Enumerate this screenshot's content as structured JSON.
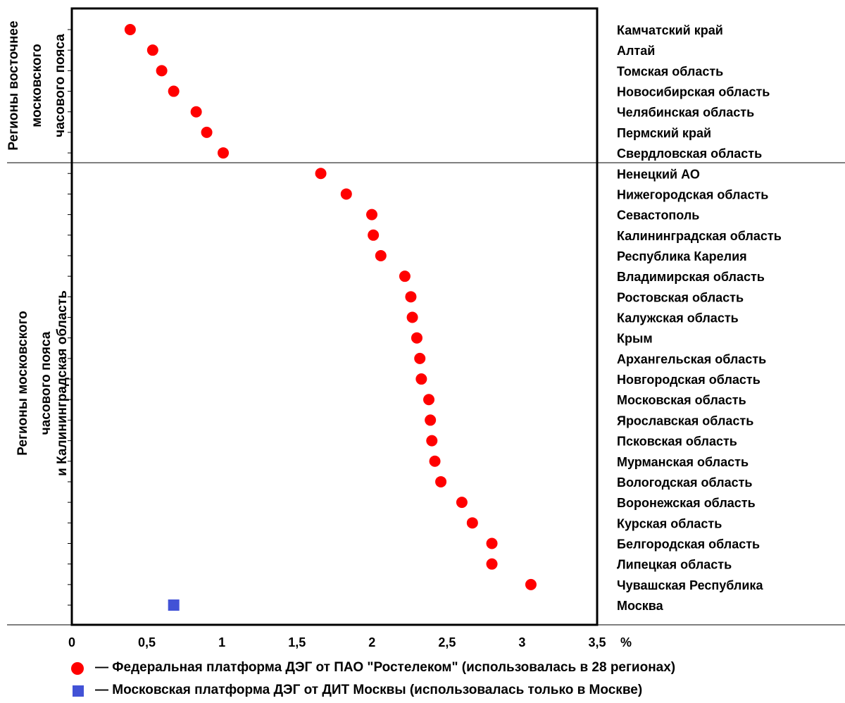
{
  "chart_data": {
    "type": "scatter",
    "x_unit": "%",
    "xlim": [
      0,
      3.5
    ],
    "x_ticks": [
      "0",
      "0,5",
      "1",
      "1,5",
      "2",
      "2,5",
      "3",
      "3,5"
    ],
    "groups": [
      {
        "label": "Регионы восточнее московского часового пояса",
        "label_lines": [
          "Регионы восточнее",
          "московского",
          "часового пояса"
        ]
      },
      {
        "label": "Регионы московского часового пояса и Калининградская область",
        "label_lines": [
          "Регионы московского",
          "часового пояса",
          "и Калининградская область"
        ]
      }
    ],
    "categories": [
      "Камчатский край",
      "Алтай",
      "Томская область",
      "Новосибирская область",
      "Челябинская область",
      "Пермский край",
      "Свердловская область",
      "Ненецкий АО",
      "Нижегородская область",
      "Севастополь",
      "Калининградская область",
      "Республика Карелия",
      "Владимирская область",
      "Ростовская область",
      "Калужская область",
      "Крым",
      "Архангельская область",
      "Новгородская область",
      "Московская область",
      "Ярославская область",
      "Псковская область",
      "Мурманская область",
      "Вологодская область",
      "Воронежская область",
      "Курская область",
      "Белгородская область",
      "Липецкая область",
      "Чувашская Республика",
      "Москва"
    ],
    "series": [
      {
        "name": "Федеральная платформа ДЭГ от ПАО \"Ростелеком\" (использовалась в 28 регионах)",
        "marker": "circle",
        "color": "#ff0000",
        "points": [
          {
            "category": "Камчатский край",
            "x": 0.37
          },
          {
            "category": "Алтай",
            "x": 0.52
          },
          {
            "category": "Томская область",
            "x": 0.58
          },
          {
            "category": "Новосибирская область",
            "x": 0.66
          },
          {
            "category": "Челябинская область",
            "x": 0.81
          },
          {
            "category": "Пермский край",
            "x": 0.88
          },
          {
            "category": "Свердловская область",
            "x": 0.99
          },
          {
            "category": "Ненецкий АО",
            "x": 1.64
          },
          {
            "category": "Нижегородская область",
            "x": 1.81
          },
          {
            "category": "Севастополь",
            "x": 1.98
          },
          {
            "category": "Калининградская область",
            "x": 1.99
          },
          {
            "category": "Республика Карелия",
            "x": 2.04
          },
          {
            "category": "Владимирская область",
            "x": 2.2
          },
          {
            "category": "Ростовская область",
            "x": 2.24
          },
          {
            "category": "Калужская область",
            "x": 2.25
          },
          {
            "category": "Крым",
            "x": 2.28
          },
          {
            "category": "Архангельская область",
            "x": 2.3
          },
          {
            "category": "Новгородская область",
            "x": 2.31
          },
          {
            "category": "Московская область",
            "x": 2.36
          },
          {
            "category": "Ярославская область",
            "x": 2.37
          },
          {
            "category": "Псковская область",
            "x": 2.38
          },
          {
            "category": "Мурманская область",
            "x": 2.4
          },
          {
            "category": "Вологодская область",
            "x": 2.44
          },
          {
            "category": "Воронежская область",
            "x": 2.58
          },
          {
            "category": "Курская область",
            "x": 2.65
          },
          {
            "category": "Белгородская область",
            "x": 2.78
          },
          {
            "category": "Липецкая область",
            "x": 2.78
          },
          {
            "category": "Чувашская Республика",
            "x": 3.04
          }
        ]
      },
      {
        "name": "Московская платформа ДЭГ от ДИТ Москвы (использовалась только в Москве)",
        "marker": "square",
        "color": "#4252d6",
        "points": [
          {
            "category": "Москва",
            "x": 0.66
          }
        ]
      }
    ],
    "legend": [
      {
        "marker": "circle",
        "color": "#ff0000",
        "text": "— Федеральная платформа ДЭГ от ПАО \"Ростелеком\" (использовалась в 28 регионах)"
      },
      {
        "marker": "square",
        "color": "#4252d6",
        "text": "— Московская платформа ДЭГ от ДИТ Москвы (использовалась только в Москве)"
      }
    ],
    "legend_placement": "bottom",
    "grid": false
  }
}
